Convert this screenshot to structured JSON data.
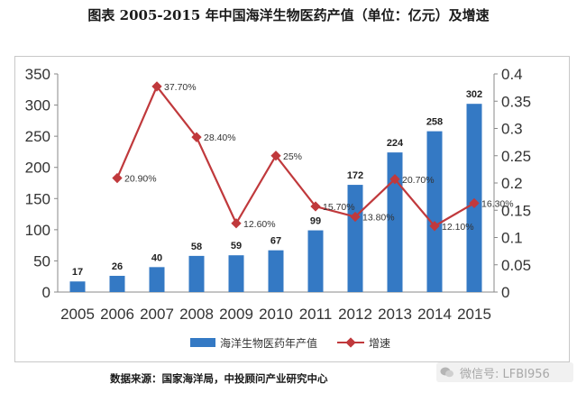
{
  "title": "图表   2005-2015 年中国海洋生物医药产值（单位：亿元）及增速",
  "source": "数据来源：国家海洋局，中投顾问产业研究中心",
  "watermark": "微信号: LFBI956",
  "colors": {
    "bar": "#3479c4",
    "line": "#c0393c",
    "axis": "#888888",
    "grid": "#d9d9d9"
  },
  "chart_data": {
    "type": "bar",
    "categories": [
      "2005",
      "2006",
      "2007",
      "2008",
      "2009",
      "2010",
      "2011",
      "2012",
      "2013",
      "2014",
      "2015"
    ],
    "series": [
      {
        "name": "海洋生物医药年产值",
        "type": "bar",
        "axis": "left",
        "values": [
          17,
          26,
          40,
          58,
          59,
          67,
          99,
          172,
          224,
          258,
          302
        ],
        "labels": [
          "17",
          "26",
          "40",
          "58",
          "59",
          "67",
          "99",
          "172",
          "224",
          "258",
          "302"
        ]
      },
      {
        "name": "增速",
        "type": "line",
        "axis": "right",
        "values": [
          null,
          0.209,
          0.377,
          0.284,
          0.126,
          0.25,
          0.157,
          0.138,
          0.207,
          0.121,
          0.163
        ],
        "labels": [
          "",
          "20.90%",
          "37.70%",
          "28.40%",
          "12.60%",
          "25%",
          "15.70%",
          "13.80%",
          "20.70%",
          "12.10%",
          "16.30%"
        ]
      }
    ],
    "y_left": {
      "ylim": [
        0,
        350
      ],
      "ticks": [
        "0",
        "50",
        "100",
        "150",
        "200",
        "250",
        "300",
        "350"
      ]
    },
    "y_right": {
      "ylim": [
        0,
        0.4
      ],
      "ticks": [
        "0",
        "0.05",
        "0.1",
        "0.15",
        "0.2",
        "0.25",
        "0.3",
        "0.35",
        "0.4"
      ]
    },
    "grid": false,
    "legend_position": "bottom"
  }
}
